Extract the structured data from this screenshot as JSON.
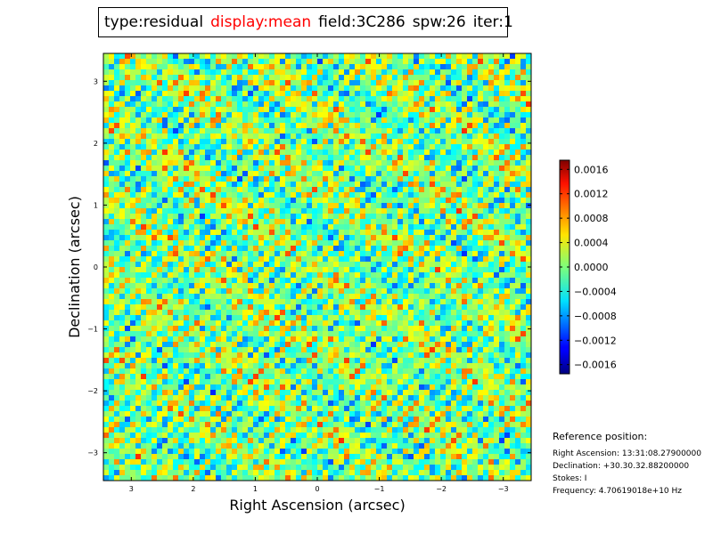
{
  "title": {
    "parts": [
      {
        "text": "type:residual",
        "highlight": false
      },
      {
        "text": "display:mean",
        "highlight": true
      },
      {
        "text": "field:3C286",
        "highlight": false
      },
      {
        "text": "spw:26",
        "highlight": false
      },
      {
        "text": "iter:1",
        "highlight": false
      }
    ],
    "highlight_color": "#ff0000"
  },
  "chart_data": {
    "type": "heatmap",
    "xlabel": "Right Ascension (arcsec)",
    "ylabel": "Declination (arcsec)",
    "xlim": [
      3.45,
      -3.45
    ],
    "ylim": [
      -3.45,
      3.45
    ],
    "x_ticks": [
      3,
      2,
      1,
      0,
      -1,
      -2,
      -3
    ],
    "x_tick_labels": [
      "3",
      "2",
      "1",
      "0",
      "−1",
      "−2",
      "−3"
    ],
    "y_ticks": [
      3,
      2,
      1,
      0,
      -1,
      -2,
      -3
    ],
    "y_tick_labels": [
      "3",
      "2",
      "1",
      "0",
      "−1",
      "−2",
      "−3"
    ],
    "colormap": "jet",
    "colorbar": {
      "vmin": -0.00175,
      "vmax": 0.00175,
      "ticks": [
        0.0016,
        0.0012,
        0.0008,
        0.0004,
        0.0,
        -0.0004,
        -0.0008,
        -0.0012,
        -0.0016
      ],
      "tick_labels": [
        "0.0016",
        "0.0012",
        "0.0008",
        "0.0004",
        "0.0000",
        "−0.0004",
        "−0.0008",
        "−0.0012",
        "−0.0016"
      ]
    },
    "pattern": "diagonal striped residual noise, values mostly near 0 with scattered extremes"
  },
  "reference": {
    "title": "Reference position:",
    "right_ascension": "Right Ascension: 13:31:08.27900000",
    "declination": "Declination: +30.30.32.88200000",
    "stokes": "Stokes: I",
    "frequency": "Frequency: 4.70619018e+10 Hz"
  }
}
